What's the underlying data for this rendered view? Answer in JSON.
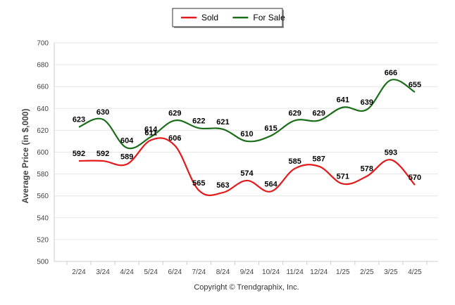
{
  "chart_data": {
    "type": "line",
    "title": "",
    "xlabel": "",
    "ylabel": "Average Price (in $,000)",
    "categories": [
      "2/24",
      "3/24",
      "4/24",
      "5/24",
      "6/24",
      "7/24",
      "8/24",
      "9/24",
      "10/24",
      "11/24",
      "12/24",
      "1/25",
      "2/25",
      "3/25",
      "4/25"
    ],
    "series": [
      {
        "name": "Sold",
        "color": "#e31a1c",
        "values": [
          592,
          592,
          589,
          611,
          606,
          565,
          563,
          574,
          564,
          585,
          587,
          571,
          578,
          593,
          570
        ]
      },
      {
        "name": "For Sale",
        "color": "#1a6e1a",
        "values": [
          623,
          630,
          604,
          614,
          629,
          622,
          621,
          610,
          615,
          629,
          629,
          641,
          639,
          666,
          655
        ]
      }
    ],
    "ylim": [
      500,
      700
    ],
    "yticks": [
      500,
      520,
      540,
      560,
      580,
      600,
      620,
      640,
      660,
      680,
      700
    ],
    "grid": true,
    "legend_position": "top-center",
    "credit": "Copyright © Trendgraphix, Inc."
  }
}
